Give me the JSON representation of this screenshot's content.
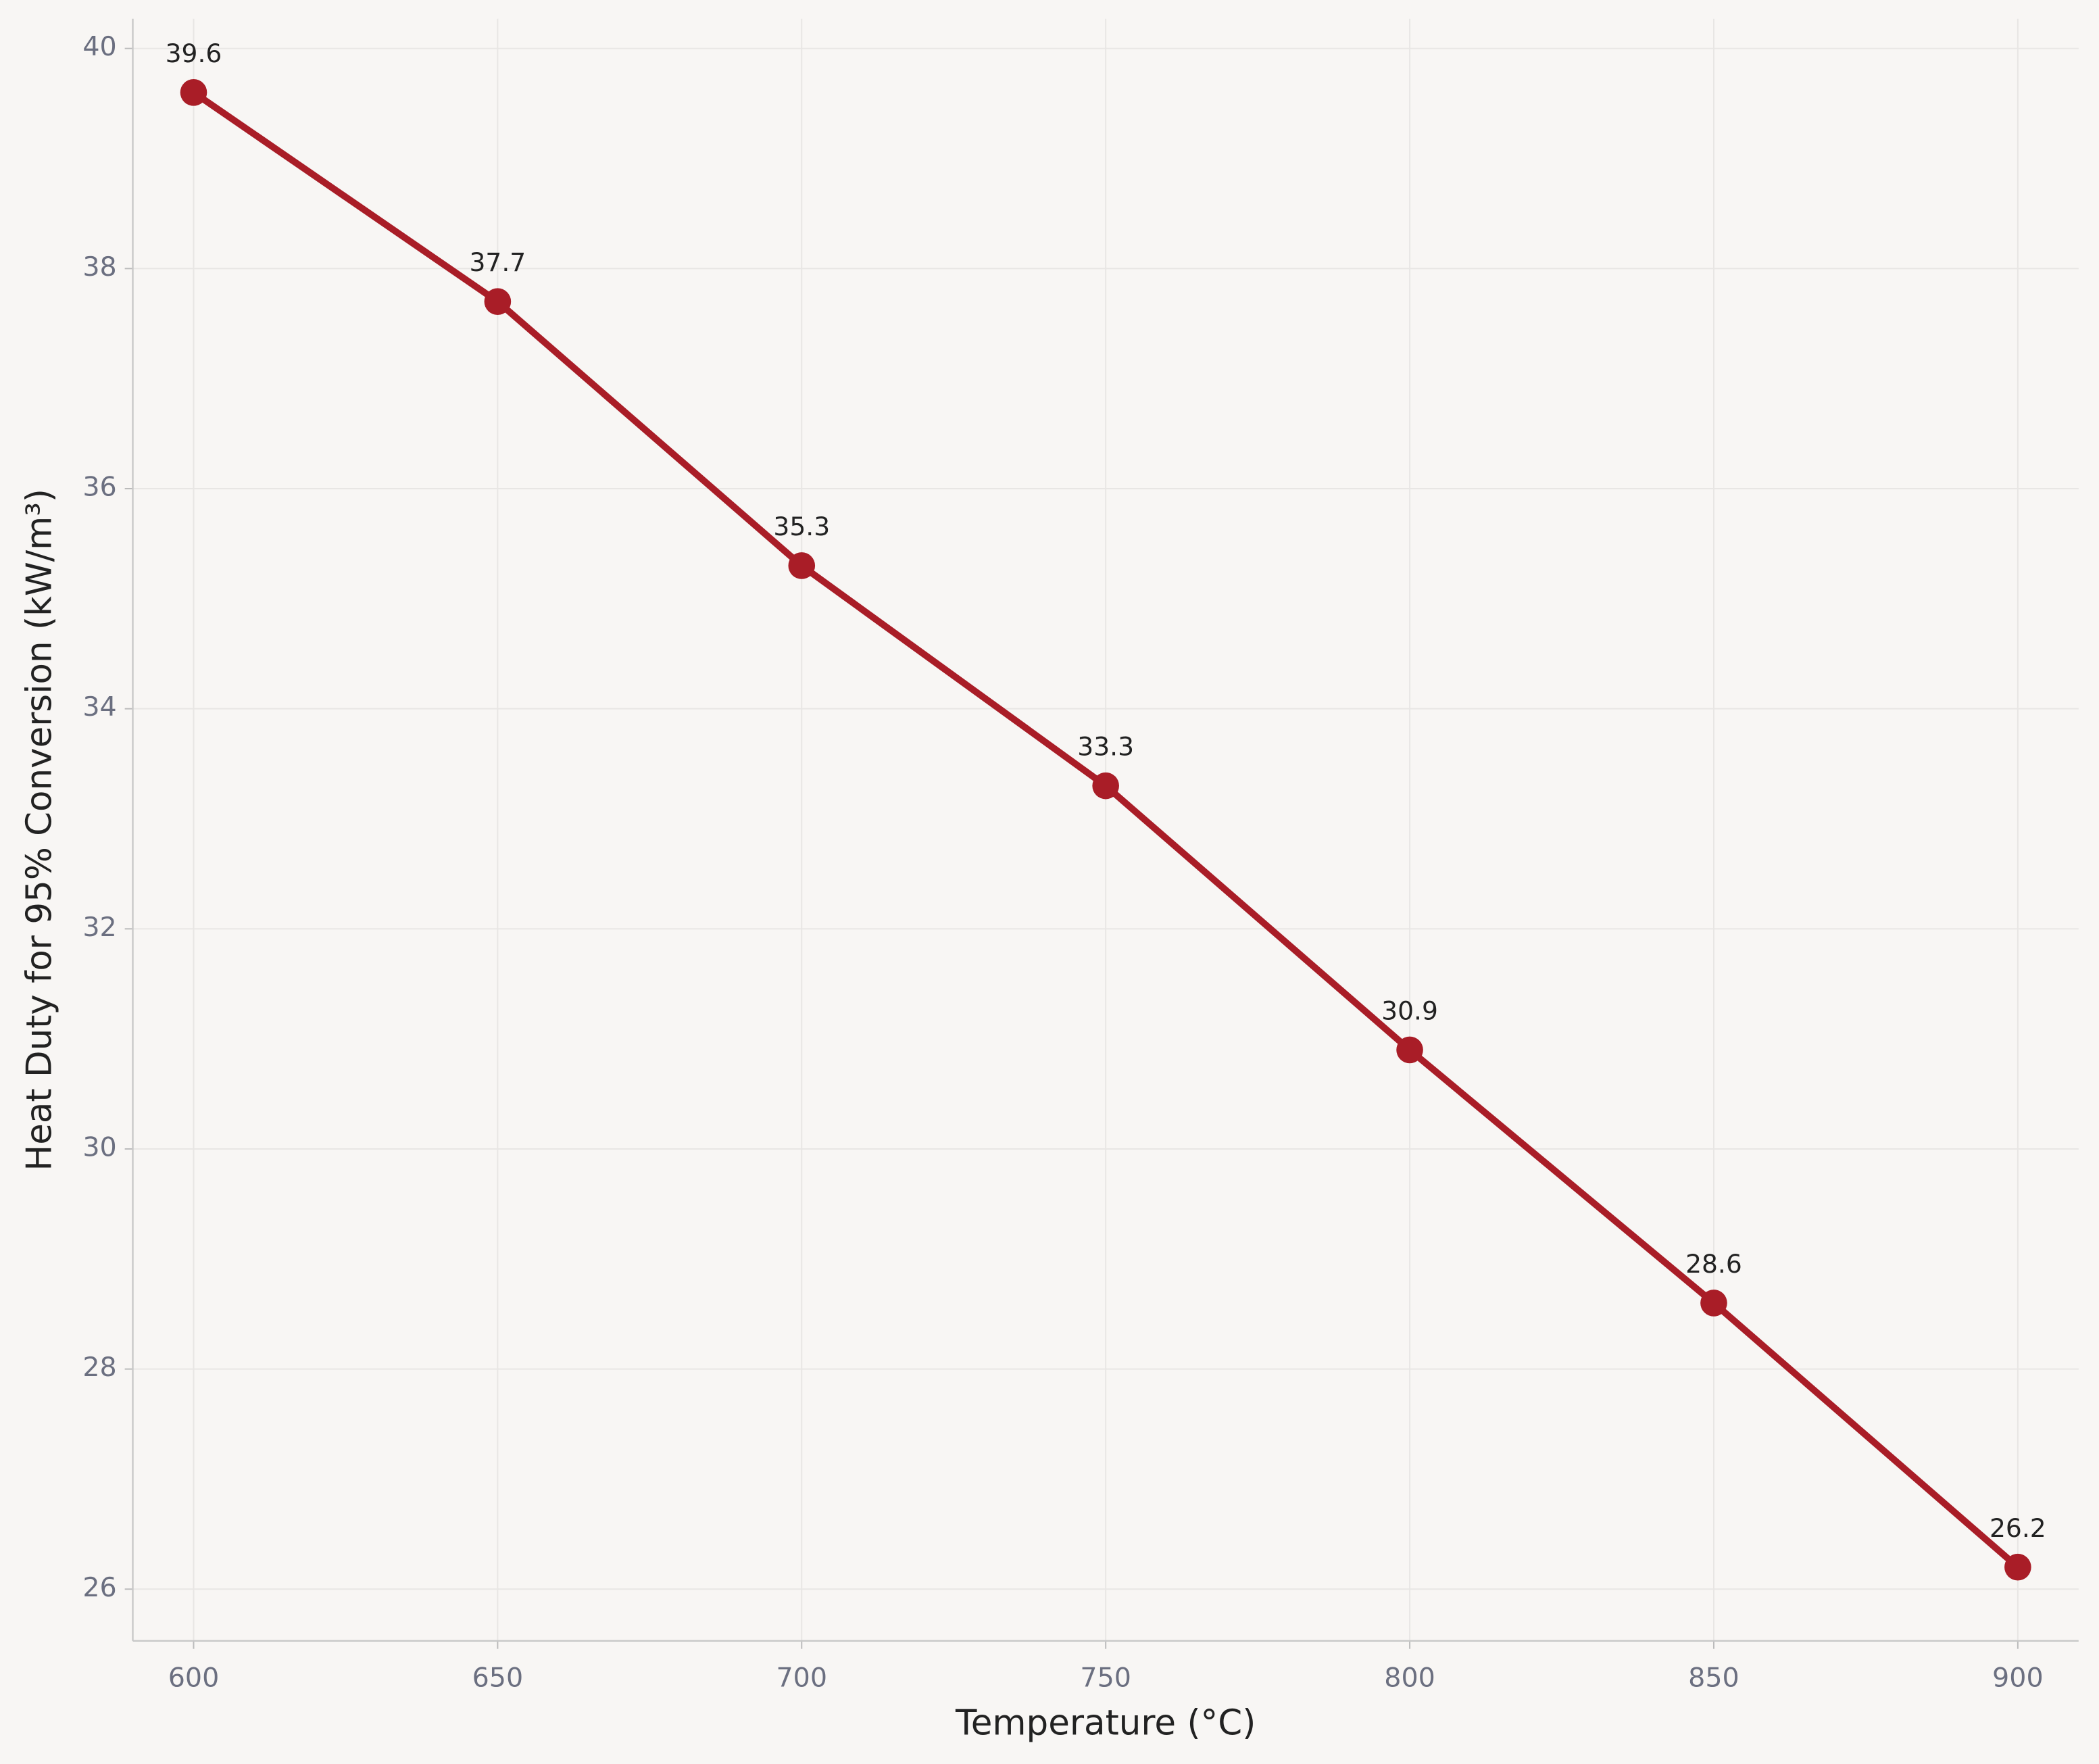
{
  "chart_data": {
    "type": "line",
    "x_label": "Temperature (°C)",
    "y_label": "Heat Duty for 95% Conversion (kW/m³)",
    "x": [
      600,
      650,
      700,
      750,
      800,
      850,
      900
    ],
    "series": [
      {
        "color": "#a91d27",
        "values": [
          39.6,
          37.7,
          35.3,
          33.3,
          30.9,
          28.6,
          26.2
        ]
      }
    ],
    "xlim": [
      590,
      910
    ],
    "xticks": [
      600,
      650,
      700,
      750,
      800,
      850,
      900
    ],
    "ylim": [
      25.53,
      40.27
    ],
    "yticks": [
      26,
      28,
      30,
      32,
      34,
      36,
      38,
      40
    ],
    "grid": true
  }
}
